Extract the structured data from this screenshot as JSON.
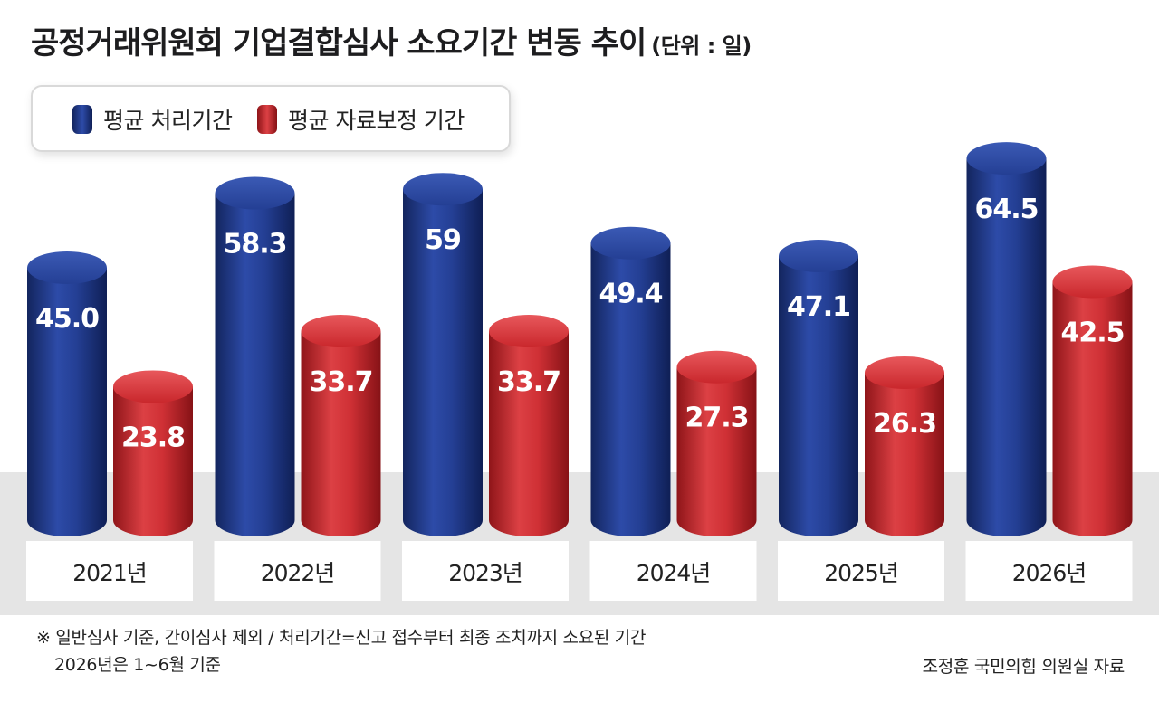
{
  "title": "공정거래위원회 기업결합심사 소요기간 변동 추이",
  "unit": "(단위 : 일)",
  "legend": {
    "series1": "평균 처리기간",
    "series2": "평균 자료보정 기간"
  },
  "footnote": {
    "line1": "※ 일반심사 기준, 간이심사 제외 / 처리기간=신고 접수부터 최종 조치까지 소요된 기간",
    "line2": "2026년은 1~6월 기준"
  },
  "source": "조정훈 국민의힘 의원실 자료",
  "colors": {
    "series1": "#1f3a8f",
    "series2": "#c9272c",
    "floor": "#e5e5e5"
  },
  "chart_data": {
    "type": "bar",
    "categories": [
      "2021년",
      "2022년",
      "2023년",
      "2024년",
      "2025년",
      "2026년"
    ],
    "series": [
      {
        "name": "평균 처리기간",
        "values": [
          45.0,
          58.3,
          59,
          49.4,
          47.1,
          64.5
        ],
        "labels": [
          "45.0",
          "58.3",
          "59",
          "49.4",
          "47.1",
          "64.5"
        ]
      },
      {
        "name": "평균 자료보정 기간",
        "values": [
          23.8,
          33.7,
          33.7,
          27.3,
          26.3,
          42.5
        ],
        "labels": [
          "23.8",
          "33.7",
          "33.7",
          "27.3",
          "26.3",
          "42.5"
        ]
      }
    ],
    "title": "공정거래위원회 기업결합심사 소요기간 변동 추이",
    "ylabel": "",
    "xlabel": "",
    "legend": "top-left",
    "grid": false
  }
}
